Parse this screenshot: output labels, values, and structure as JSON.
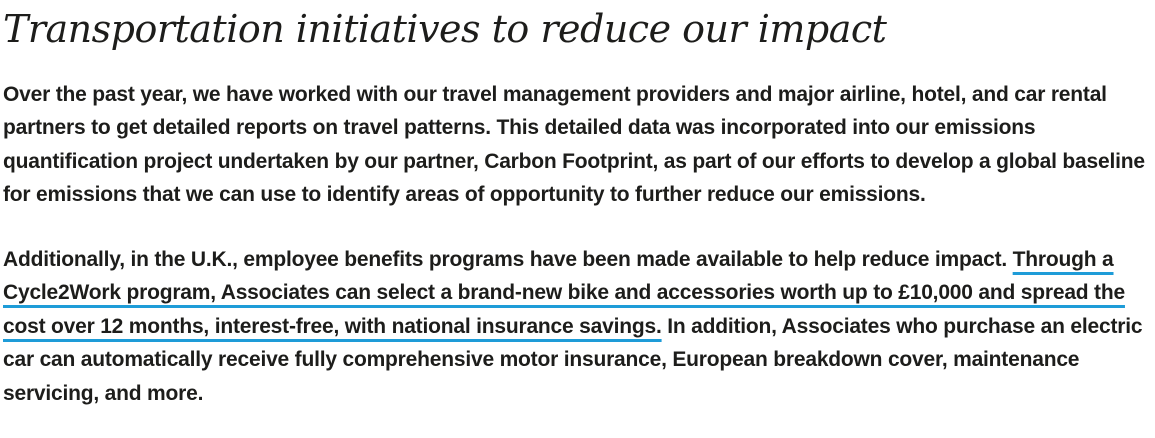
{
  "page": {
    "background_color": "#ffffff",
    "text_color": "#1d1d1b",
    "link_underline_color": "#1e9cd8"
  },
  "article": {
    "title": "Transportation initiatives to reduce our impact",
    "paragraph1": "Over the past year, we have worked with our travel management providers and major airline, hotel, and car rental partners to get detailed reports on travel patterns. This detailed data was incorporated into our emissions quantification project undertaken by our partner, Carbon Footprint, as part of our efforts to develop a global baseline for emissions that we can use to identify areas of opportunity to further reduce our emissions.",
    "paragraph2": {
      "pre": "Additionally, in the U.K., employee benefits programs have been made available to help reduce impact. ",
      "link": "Through a Cycle2Work program, Associates can select a brand-new bike and accessories worth up to £10,000 and spread the cost over 12 months, interest-free, with national insurance savings.",
      "post": " In addition, Associates who purchase an electric car can automatically receive fully comprehensive motor insurance, European breakdown cover, maintenance servicing, and more."
    }
  }
}
